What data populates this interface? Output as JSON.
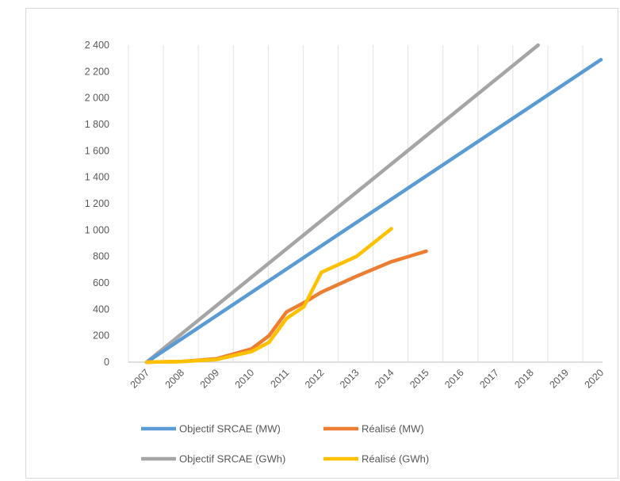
{
  "chart_data": {
    "type": "line",
    "title": "",
    "xlabel": "",
    "ylabel": "",
    "x": [
      "2007",
      "2008",
      "2009",
      "2010",
      "2011",
      "2012",
      "2013",
      "2014",
      "2015",
      "2016",
      "2017",
      "2018",
      "2019",
      "2020"
    ],
    "ylim": [
      0,
      2400
    ],
    "yticks": [
      0,
      200,
      400,
      600,
      800,
      1000,
      1200,
      1400,
      1600,
      1800,
      2000,
      2200,
      2400
    ],
    "ytick_labels": [
      "0",
      "200",
      "400",
      "600",
      "800",
      "1 000",
      "1 200",
      "1 400",
      "1 600",
      "1 800",
      "2 000",
      "2 200",
      "2 400"
    ],
    "grid": "vertical",
    "legend_position": "bottom",
    "series": [
      {
        "name": "Objectif SRCAE (MW)",
        "color": "#5b9bd5",
        "x": [
          2007,
          2020
        ],
        "values": [
          0,
          2290
        ]
      },
      {
        "name": "Réalisé (MW)",
        "color": "#ed7d31",
        "x": [
          2007,
          2008,
          2009,
          2010,
          2010.5,
          2011,
          2011.5,
          2012,
          2013,
          2014,
          2015
        ],
        "values": [
          0,
          5,
          25,
          100,
          200,
          380,
          450,
          530,
          650,
          760,
          840
        ]
      },
      {
        "name": "Objectif SRCAE (GWh)",
        "color": "#a5a5a5",
        "x": [
          2007,
          2018.2
        ],
        "values": [
          0,
          2400
        ]
      },
      {
        "name": "Réalisé (GWh)",
        "color": "#ffc000",
        "x": [
          2007,
          2008,
          2009,
          2010,
          2010.5,
          2011,
          2011.5,
          2012,
          2013,
          2014
        ],
        "values": [
          0,
          5,
          20,
          80,
          150,
          330,
          420,
          680,
          800,
          1010
        ]
      }
    ]
  },
  "legend": [
    {
      "label": "Objectif SRCAE (MW)",
      "color": "#5b9bd5"
    },
    {
      "label": "Réalisé (MW)",
      "color": "#ed7d31"
    },
    {
      "label": "Objectif SRCAE (GWh)",
      "color": "#a5a5a5"
    },
    {
      "label": "Réalisé (GWh)",
      "color": "#ffc000"
    }
  ]
}
